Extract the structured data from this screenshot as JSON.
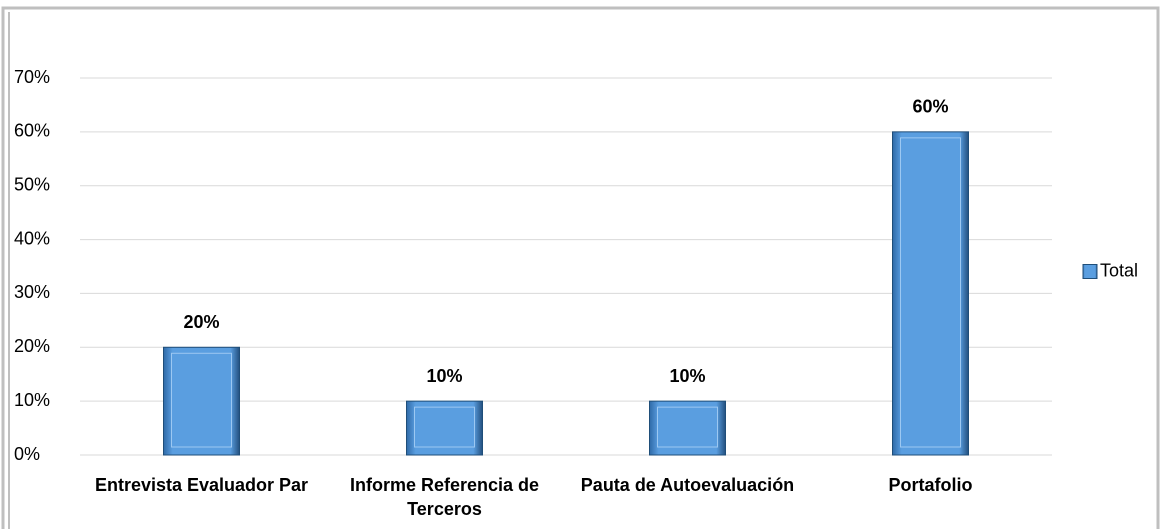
{
  "chart_data": {
    "type": "bar",
    "categories": [
      "Entrevista Evaluador Par",
      "Informe Referencia de Terceros",
      "Pauta de Autoevaluación",
      "Portafolio"
    ],
    "series": [
      {
        "name": "Total",
        "color": "#5a9ee0",
        "values": [
          20,
          10,
          10,
          60
        ],
        "value_labels": [
          "20%",
          "10%",
          "10%",
          "60%"
        ]
      }
    ],
    "ylim": [
      0,
      70
    ],
    "yticks": [
      {
        "value": 0,
        "label": "0%"
      },
      {
        "value": 10,
        "label": "10%"
      },
      {
        "value": 20,
        "label": "20%"
      },
      {
        "value": 30,
        "label": "30%"
      },
      {
        "value": 40,
        "label": "40%"
      },
      {
        "value": 50,
        "label": "50%"
      },
      {
        "value": 60,
        "label": "60%"
      },
      {
        "value": 70,
        "label": "70%"
      }
    ],
    "grid": true,
    "legend": "right"
  }
}
